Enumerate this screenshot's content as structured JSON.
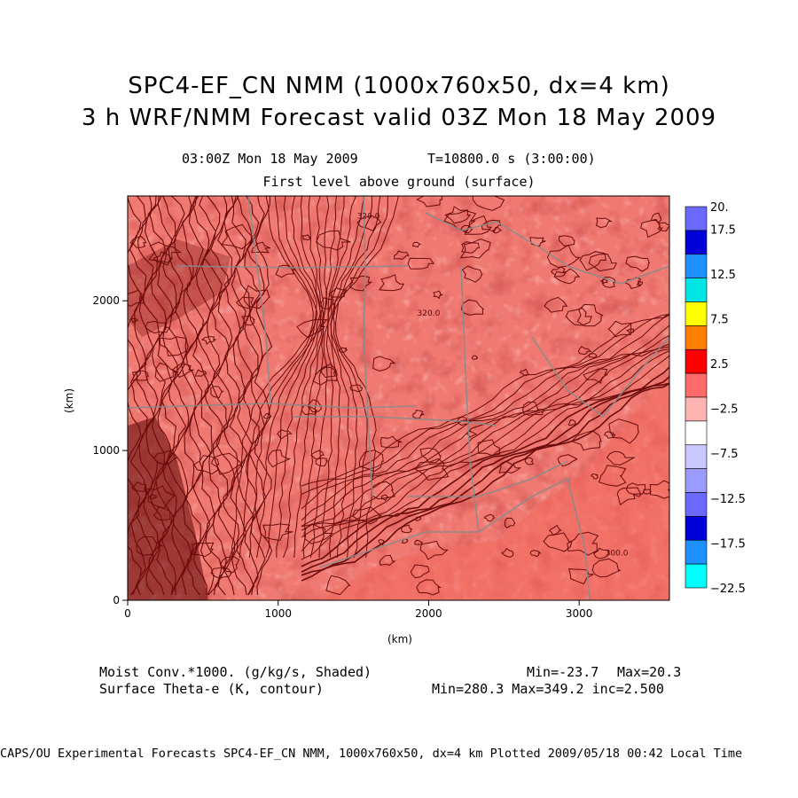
{
  "title_line1": "SPC4-EF_CN NMM (1000x760x50, dx=4 km)",
  "title_line2": "3 h WRF/NMM Forecast valid 03Z Mon 18 May 2009",
  "subtitle_time": "03:00Z Mon 18 May 2009",
  "subtitle_seconds": "T=10800.0 s (3:00:00)",
  "subtitle_level": "First level above ground (surface)",
  "chart_data": {
    "type": "heatmap",
    "description_fields": {
      "shaded_field": "Moist Conv.*1000. (g/kg/s, Shaded)",
      "contour_field": "Surface Theta-e (K, contour)"
    },
    "xlabel": "(km)",
    "ylabel": "(km)",
    "xlim": [
      0,
      3600
    ],
    "ylim": [
      0,
      2700
    ],
    "x_ticks": [
      "0",
      "1000",
      "2000",
      "3000"
    ],
    "x_tick_values": [
      0,
      1000,
      2000,
      3000
    ],
    "y_ticks": [
      "0",
      "1000",
      "2000"
    ],
    "y_tick_values": [
      0,
      1000,
      2000
    ],
    "colorbar": {
      "labels": [
        "20.",
        "17.5",
        "12.5",
        "7.5",
        "2.5",
        "−2.5",
        "−7.5",
        "−12.5",
        "−17.5",
        "−22.5"
      ],
      "label_values": [
        20,
        17.5,
        12.5,
        7.5,
        2.5,
        -2.5,
        -7.5,
        -12.5,
        -17.5,
        -22.5
      ],
      "bin_colors": [
        "#6a6aff",
        "#0000d8",
        "#1e90ff",
        "#00e5e5",
        "#ffff00",
        "#ff8000",
        "#ff0000",
        "#ff6a6a",
        "#ffb4b4",
        "#ffffff",
        "#c8c8ff",
        "#9a9aff",
        "#6a6aff",
        "#0000d8",
        "#1e90ff",
        "#00ffff"
      ]
    },
    "contour_labels": [
      {
        "text": "320.0",
        "x": 2000,
        "y": 1900
      },
      {
        "text": "300.0",
        "x": 3250,
        "y": 300
      },
      {
        "text": "320.0",
        "x": 1600,
        "y": 2550
      }
    ],
    "shaded_min": "Min=-23.7",
    "shaded_max": "Max=20.3",
    "contour_stats": "Min=280.3 Max=349.2 inc=2.500",
    "dominant_color": "#f07a72",
    "contour_color": "#6a0a0a",
    "border_color": "#8a8a8a"
  },
  "credit": "CAPS/OU Experimental Forecasts  SPC4-EF_CN NMM, 1000x760x50, dx=4 km  Plotted 2009/05/18 00:42 Local Time"
}
